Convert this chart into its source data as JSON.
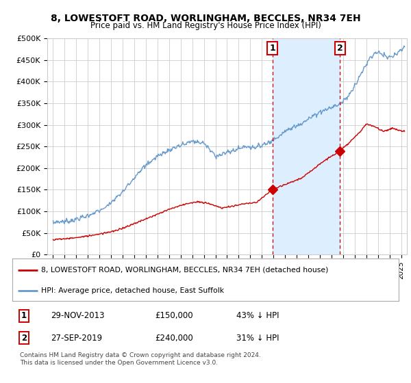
{
  "title": "8, LOWESTOFT ROAD, WORLINGHAM, BECCLES, NR34 7EH",
  "subtitle": "Price paid vs. HM Land Registry's House Price Index (HPI)",
  "ylim": [
    0,
    500000
  ],
  "xlim_start": 1994.5,
  "xlim_end": 2025.5,
  "ytick_labels": [
    "£0",
    "£50K",
    "£100K",
    "£150K",
    "£200K",
    "£250K",
    "£300K",
    "£350K",
    "£400K",
    "£450K",
    "£500K"
  ],
  "ytick_values": [
    0,
    50000,
    100000,
    150000,
    200000,
    250000,
    300000,
    350000,
    400000,
    450000,
    500000
  ],
  "sale1_x": 2013.91,
  "sale1_y": 150000,
  "sale1_label": "1",
  "sale1_date": "29-NOV-2013",
  "sale1_price": "£150,000",
  "sale1_hpi": "43% ↓ HPI",
  "sale2_x": 2019.74,
  "sale2_y": 240000,
  "sale2_label": "2",
  "sale2_date": "27-SEP-2019",
  "sale2_price": "£240,000",
  "sale2_hpi": "31% ↓ HPI",
  "line_color_red": "#cc0000",
  "line_color_blue": "#6699cc",
  "shade_color": "#ddeeff",
  "legend_label_red": "8, LOWESTOFT ROAD, WORLINGHAM, BECCLES, NR34 7EH (detached house)",
  "legend_label_blue": "HPI: Average price, detached house, East Suffolk",
  "footer": "Contains HM Land Registry data © Crown copyright and database right 2024.\nThis data is licensed under the Open Government Licence v3.0.",
  "bg_color": "#ffffff",
  "plot_bg_color": "#ffffff",
  "grid_color": "#cccccc"
}
